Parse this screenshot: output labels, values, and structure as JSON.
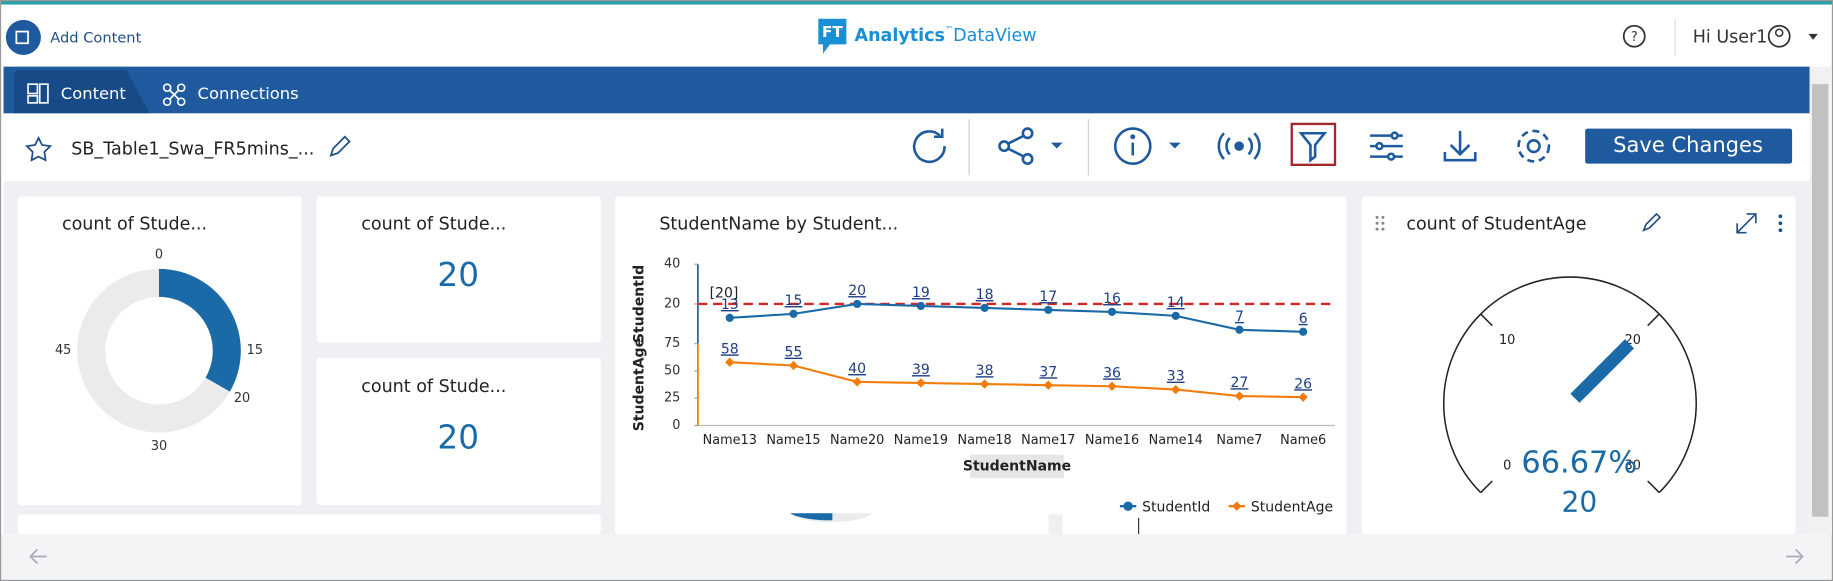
{
  "header": {
    "add_content": "Add Content",
    "logo_mark": "FT",
    "logo_brand": "Analytics",
    "logo_tm": "™",
    "logo_product": "DataView",
    "user_greeting": "Hi User1"
  },
  "tabs": [
    "Content",
    "Connections"
  ],
  "toolbar": {
    "dashboard_name": "SB_Table1_Swa_FR5mins_...",
    "save_button": "Save Changes"
  },
  "widgets": {
    "donut": {
      "type": "donut",
      "title": "count of Stude...",
      "value": 20,
      "range": [
        0,
        60
      ],
      "ticks": [
        0,
        15,
        20,
        30,
        45
      ],
      "color": "#1a6aa8",
      "track_color": "#ebebeb"
    },
    "kpi_1": {
      "title": "count of Stude...",
      "value": 20
    },
    "kpi_2": {
      "title": "count of Stude...",
      "value": 20
    },
    "line_chart": {
      "type": "line",
      "title": "StudentName by Student...",
      "categories": [
        "Name13",
        "Name15",
        "Name20",
        "Name19",
        "Name18",
        "Name17",
        "Name16",
        "Name14",
        "Name7",
        "Name6"
      ],
      "x_label": "StudentName",
      "series": [
        {
          "name": "StudentId",
          "color": "#1a6aa8",
          "values": [
            13,
            15,
            20,
            19,
            18,
            17,
            16,
            14,
            7,
            6
          ],
          "ylim": [
            0,
            40
          ],
          "yticks": [
            20,
            40
          ],
          "reference_line": {
            "value": 20,
            "label": "[20]",
            "color": "#d62728"
          }
        },
        {
          "name": "StudentAge",
          "color": "#f47c0c",
          "values": [
            58,
            55,
            40,
            39,
            38,
            37,
            36,
            33,
            27,
            26
          ],
          "ylim": [
            0,
            75
          ],
          "yticks": [
            0,
            25,
            50,
            75
          ]
        }
      ]
    },
    "gauge": {
      "type": "gauge",
      "title": "count of StudentAge",
      "value": 20,
      "range": [
        0,
        30
      ],
      "ticks": [
        0,
        10,
        20,
        30
      ],
      "percent_label": "66.67%",
      "color": "#1a6aa8"
    }
  }
}
